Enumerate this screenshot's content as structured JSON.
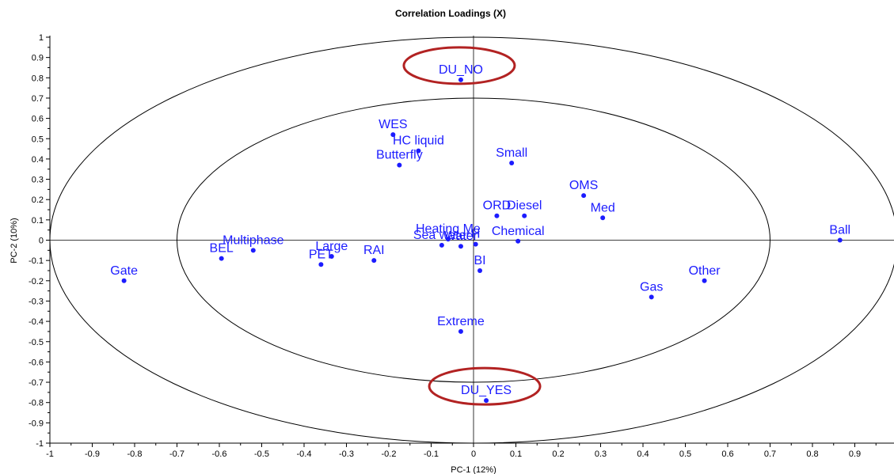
{
  "chart_data": {
    "type": "scatter",
    "title": "Correlation Loadings (X)",
    "xlabel": "PC-1 (12%)",
    "ylabel": "PC-2 (10%)",
    "xlim": [
      -1,
      1
    ],
    "ylim": [
      -1,
      1
    ],
    "xticks": [
      "-1",
      "-0.9",
      "-0.8",
      "-0.7",
      "-0.6",
      "-0.5",
      "-0.4",
      "-0.3",
      "-0.2",
      "-0.1",
      "0",
      "0.1",
      "0.2",
      "0.3",
      "0.4",
      "0.5",
      "0.6",
      "0.7",
      "0.8",
      "0.9"
    ],
    "yticks": [
      "1",
      "0.9",
      "0.8",
      "0.7",
      "0.6",
      "0.5",
      "0.4",
      "0.3",
      "0.2",
      "0.1",
      "0",
      "-0.1",
      "-0.2",
      "-0.3",
      "-0.4",
      "-0.5",
      "-0.6",
      "-0.7",
      "-0.8",
      "-0.9",
      "-1"
    ],
    "ellipses": [
      1.0,
      0.7
    ],
    "point_color": "#1c1cff",
    "highlight_color": "#b22222",
    "highlighted": [
      "DU_NO",
      "DU_YES"
    ],
    "points": [
      {
        "label": "DU_NO",
        "x": -0.03,
        "y": 0.79
      },
      {
        "label": "WES",
        "x": -0.19,
        "y": 0.52
      },
      {
        "label": "HC liquid",
        "x": -0.13,
        "y": 0.44
      },
      {
        "label": "Butterfly",
        "x": -0.175,
        "y": 0.37
      },
      {
        "label": "Small",
        "x": 0.09,
        "y": 0.38
      },
      {
        "label": "OMS",
        "x": 0.26,
        "y": 0.22
      },
      {
        "label": "Med",
        "x": 0.305,
        "y": 0.11
      },
      {
        "label": "ORD",
        "x": 0.055,
        "y": 0.12
      },
      {
        "label": "Diesel",
        "x": 0.12,
        "y": 0.12
      },
      {
        "label": "Heating Me",
        "x": -0.06,
        "y": 0.005
      },
      {
        "label": "Sea water",
        "x": -0.075,
        "y": -0.025
      },
      {
        "label": "Water",
        "x": -0.03,
        "y": -0.03
      },
      {
        "label": "H",
        "x": 0.005,
        "y": -0.02
      },
      {
        "label": "Chemical",
        "x": 0.105,
        "y": -0.005
      },
      {
        "label": "BI",
        "x": 0.015,
        "y": -0.15
      },
      {
        "label": "Ball",
        "x": 0.865,
        "y": 0.0
      },
      {
        "label": "Other",
        "x": 0.545,
        "y": -0.2
      },
      {
        "label": "Gas",
        "x": 0.42,
        "y": -0.28
      },
      {
        "label": "Extreme",
        "x": -0.03,
        "y": -0.45
      },
      {
        "label": "DU_YES",
        "x": 0.03,
        "y": -0.79
      },
      {
        "label": "BEL",
        "x": -0.595,
        "y": -0.09
      },
      {
        "label": "Multiphase",
        "x": -0.52,
        "y": -0.05
      },
      {
        "label": "Large",
        "x": -0.335,
        "y": -0.08
      },
      {
        "label": "PET",
        "x": -0.36,
        "y": -0.12
      },
      {
        "label": "RAI",
        "x": -0.235,
        "y": -0.1
      },
      {
        "label": "Gate",
        "x": -0.825,
        "y": -0.2
      }
    ]
  }
}
